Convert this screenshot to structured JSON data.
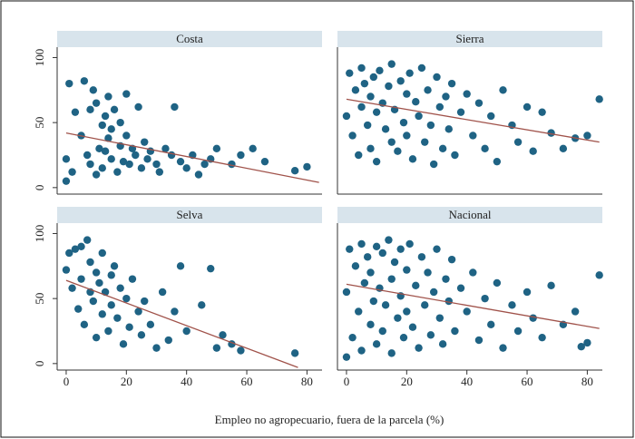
{
  "xlabel": "Empleo no agropecuario, fuera de la parcela (%)",
  "chart_data": [
    {
      "type": "scatter",
      "title": "Costa",
      "color": "#1f6384",
      "x": [
        0,
        0,
        1,
        2,
        3,
        5,
        6,
        7,
        8,
        8,
        9,
        10,
        10,
        11,
        12,
        12,
        13,
        13,
        14,
        14,
        15,
        15,
        16,
        17,
        18,
        18,
        19,
        20,
        20,
        21,
        22,
        23,
        24,
        25,
        26,
        27,
        28,
        30,
        31,
        33,
        35,
        36,
        38,
        40,
        42,
        44,
        46,
        48,
        50,
        55,
        58,
        62,
        66,
        76,
        80
      ],
      "values": [
        5,
        22,
        80,
        12,
        58,
        40,
        82,
        25,
        60,
        18,
        75,
        65,
        10,
        30,
        48,
        15,
        55,
        28,
        38,
        70,
        22,
        45,
        60,
        12,
        32,
        50,
        20,
        72,
        40,
        18,
        30,
        25,
        62,
        15,
        35,
        22,
        28,
        18,
        12,
        30,
        25,
        62,
        20,
        15,
        25,
        10,
        18,
        22,
        30,
        18,
        25,
        30,
        20,
        13,
        16
      ],
      "fit": {
        "color": "#a0524a",
        "x": [
          0,
          84
        ],
        "values": [
          42,
          4
        ]
      },
      "xlim": [
        -3,
        85
      ],
      "ylim": [
        -5,
        108
      ],
      "yticks": [
        0,
        50,
        100
      ]
    },
    {
      "type": "scatter",
      "title": "Sierra",
      "color": "#1f6384",
      "x": [
        0,
        1,
        2,
        3,
        4,
        5,
        5,
        6,
        7,
        8,
        8,
        9,
        10,
        10,
        11,
        12,
        13,
        14,
        15,
        15,
        16,
        17,
        18,
        19,
        20,
        20,
        21,
        22,
        23,
        24,
        25,
        26,
        27,
        28,
        29,
        30,
        31,
        32,
        33,
        34,
        35,
        36,
        38,
        40,
        42,
        44,
        46,
        48,
        50,
        52,
        55,
        57,
        60,
        62,
        65,
        68,
        72,
        76,
        80,
        84
      ],
      "values": [
        55,
        88,
        40,
        75,
        25,
        92,
        62,
        80,
        48,
        70,
        30,
        85,
        58,
        20,
        90,
        65,
        45,
        78,
        35,
        95,
        60,
        28,
        82,
        50,
        72,
        40,
        88,
        22,
        66,
        55,
        92,
        35,
        75,
        48,
        18,
        85,
        62,
        30,
        70,
        45,
        80,
        25,
        58,
        72,
        40,
        65,
        30,
        55,
        20,
        75,
        48,
        35,
        62,
        28,
        58,
        42,
        30,
        38,
        40,
        68
      ],
      "fit": {
        "color": "#a0524a",
        "x": [
          0,
          84
        ],
        "values": [
          68,
          35
        ]
      },
      "xlim": [
        -3,
        85
      ],
      "ylim": [
        -5,
        108
      ]
    },
    {
      "type": "scatter",
      "title": "Selva",
      "color": "#1f6384",
      "x": [
        0,
        1,
        2,
        3,
        4,
        5,
        5,
        6,
        7,
        8,
        8,
        9,
        10,
        10,
        11,
        12,
        12,
        13,
        14,
        15,
        15,
        16,
        17,
        18,
        19,
        20,
        21,
        22,
        24,
        25,
        26,
        28,
        30,
        32,
        34,
        36,
        38,
        40,
        45,
        48,
        50,
        52,
        55,
        58,
        76
      ],
      "values": [
        72,
        85,
        58,
        88,
        42,
        90,
        65,
        30,
        95,
        55,
        78,
        48,
        70,
        20,
        62,
        85,
        38,
        55,
        25,
        68,
        45,
        75,
        35,
        58,
        15,
        50,
        28,
        65,
        40,
        22,
        48,
        30,
        12,
        55,
        18,
        40,
        75,
        25,
        45,
        73,
        12,
        22,
        15,
        10,
        8
      ],
      "fit": {
        "color": "#a0524a",
        "x": [
          0,
          77
        ],
        "values": [
          64,
          -3
        ]
      },
      "xlim": [
        -3,
        85
      ],
      "ylim": [
        -5,
        108
      ],
      "xticks": [
        0,
        20,
        40,
        60,
        80
      ],
      "yticks": [
        0,
        50,
        100
      ]
    },
    {
      "type": "scatter",
      "title": "Nacional",
      "color": "#1f6384",
      "x": [
        0,
        0,
        1,
        2,
        3,
        4,
        5,
        5,
        6,
        7,
        8,
        8,
        9,
        10,
        10,
        11,
        12,
        12,
        13,
        14,
        15,
        15,
        16,
        17,
        18,
        18,
        19,
        20,
        20,
        21,
        22,
        23,
        24,
        25,
        26,
        27,
        28,
        29,
        30,
        31,
        32,
        33,
        34,
        35,
        36,
        38,
        40,
        42,
        44,
        46,
        48,
        50,
        52,
        55,
        57,
        60,
        62,
        65,
        68,
        72,
        76,
        78,
        80,
        84
      ],
      "values": [
        5,
        55,
        88,
        20,
        75,
        40,
        92,
        10,
        62,
        82,
        30,
        70,
        48,
        90,
        15,
        58,
        85,
        25,
        45,
        95,
        65,
        8,
        78,
        35,
        88,
        52,
        20,
        72,
        40,
        92,
        28,
        60,
        12,
        82,
        45,
        70,
        22,
        55,
        88,
        35,
        15,
        65,
        48,
        80,
        25,
        58,
        40,
        70,
        18,
        50,
        30,
        62,
        12,
        45,
        25,
        55,
        35,
        20,
        60,
        30,
        40,
        13,
        16,
        68
      ],
      "fit": {
        "color": "#a0524a",
        "x": [
          0,
          84
        ],
        "values": [
          61,
          27
        ]
      },
      "xlim": [
        -3,
        85
      ],
      "ylim": [
        -5,
        108
      ],
      "xticks": [
        0,
        20,
        40,
        60,
        80
      ]
    }
  ]
}
